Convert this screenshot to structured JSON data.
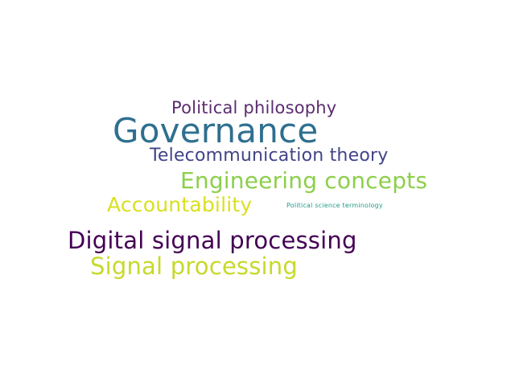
{
  "word_cloud": {
    "words": [
      {
        "text": "Political philosophy",
        "color": "#5b2c6f"
      },
      {
        "text": "Governance",
        "color": "#2f6f8f"
      },
      {
        "text": "Telecommunication theory",
        "color": "#414487"
      },
      {
        "text": "Engineering concepts",
        "color": "#8ccf4a"
      },
      {
        "text": "Accountability",
        "color": "#d9e021"
      },
      {
        "text": "Political science terminology",
        "color": "#1f9e89"
      },
      {
        "text": "Digital signal processing",
        "color": "#440154"
      },
      {
        "text": "Signal processing",
        "color": "#c7d92b"
      }
    ]
  }
}
